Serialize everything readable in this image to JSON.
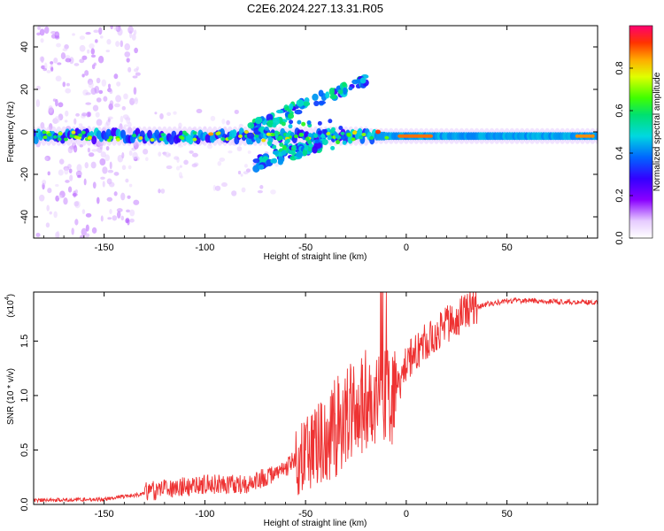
{
  "title": "C2E6.2024.227.13.31.R05",
  "chart_data": [
    {
      "id": "spectrogram",
      "type": "heatmap",
      "xlabel": "Height of straight line (km)",
      "ylabel": "Frequency (Hz)",
      "xlim": [
        -185,
        95
      ],
      "ylim": [
        -50,
        50
      ],
      "xticks": [
        -150,
        -100,
        -50,
        0,
        50
      ],
      "yticks": [
        -40,
        -20,
        0,
        20,
        40
      ],
      "colorbar": {
        "label": "Normalized spectral amplitude",
        "range": [
          0.0,
          1.0
        ],
        "ticks": [
          0.0,
          0.2,
          0.4,
          0.6,
          0.8
        ]
      },
      "main_band": {
        "freq_hz": -2,
        "description": "strong echo band near 0 Hz"
      },
      "features": [
        {
          "label": "secondary rising branch",
          "x_range": [
            -80,
            -20
          ],
          "freq_range": [
            0,
            25
          ]
        },
        {
          "label": "descending branch",
          "x_range": [
            -75,
            -40
          ],
          "freq_range": [
            -15,
            -5
          ]
        }
      ]
    },
    {
      "id": "snr",
      "type": "line",
      "xlabel": "Height of straight line (km)",
      "ylabel": "SNR (10 * v/v)",
      "multiplier": "(x10",
      "multiplier_exp": "4",
      "multiplier_close": ")",
      "xlim": [
        -185,
        95
      ],
      "ylim": [
        0,
        1.95
      ],
      "xticks": [
        -150,
        -100,
        -50,
        0,
        50
      ],
      "yticks": [
        "0.0",
        "0.5",
        "1.0",
        "1.5"
      ],
      "ytick_values": [
        0.0,
        0.5,
        1.0,
        1.5
      ],
      "color": "#ee3333",
      "trend": {
        "x": [
          -185,
          -150,
          -130,
          -100,
          -80,
          -70,
          -60,
          -50,
          -45,
          -40,
          -30,
          -20,
          -10,
          -5,
          0,
          10,
          20,
          30,
          40,
          50,
          60,
          80,
          95
        ],
        "y": [
          0.02,
          0.03,
          0.08,
          0.15,
          0.15,
          0.22,
          0.3,
          0.45,
          0.55,
          0.65,
          0.78,
          0.95,
          1.05,
          1.0,
          1.3,
          1.5,
          1.65,
          1.78,
          1.84,
          1.87,
          1.87,
          1.86,
          1.85
        ]
      }
    }
  ]
}
